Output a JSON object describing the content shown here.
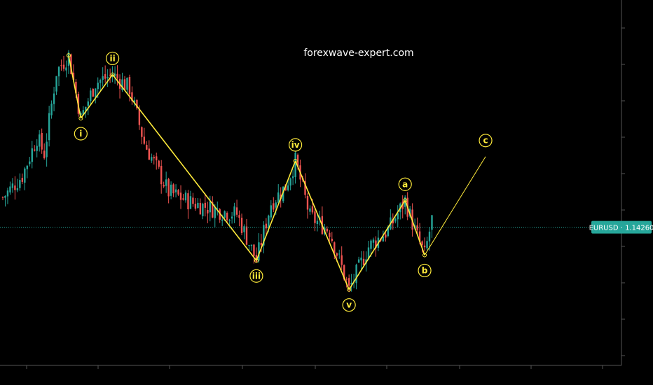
{
  "watermark": "forexwave-expert.com",
  "colors": {
    "background": "#000000",
    "up_candle": "#26a69a",
    "down_candle": "#ef5350",
    "wave_line": "#ffeb3b",
    "current_price_line": "#26a69a",
    "axis": "#555555"
  },
  "chart_data": {
    "type": "candlestick",
    "symbol": "EURUSD",
    "current_price": "1.14260",
    "price_label": "EURUSD · 1.14260",
    "grid": false,
    "elliott_waves": [
      {
        "label": "i",
        "bar": 32,
        "price": 1.1625
      },
      {
        "label": "ii",
        "bar": 45,
        "price": 1.1705
      },
      {
        "label": "iii",
        "bar": 104,
        "price": 1.1365
      },
      {
        "label": "iv",
        "bar": 120,
        "price": 1.1547
      },
      {
        "label": "v",
        "bar": 142,
        "price": 1.1312
      },
      {
        "label": "a",
        "bar": 165,
        "price": 1.1475
      },
      {
        "label": "b",
        "bar": 173,
        "price": 1.1375
      },
      {
        "label": "c",
        "bar": 198,
        "price": 1.1555
      }
    ],
    "wave_start": {
      "bar": 27,
      "price": 1.174
    }
  }
}
